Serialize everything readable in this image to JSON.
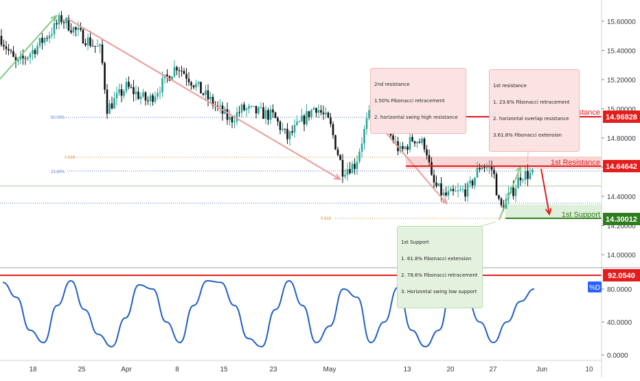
{
  "colors": {
    "up": "#26a69a",
    "down": "#111111",
    "resistance": "#e31c1c",
    "support": "#2e7d1e",
    "arrow_pink": "#eb9a9a",
    "arrow_green": "#80c980",
    "fib_orange": "#d6902c",
    "fib_blue": "#4f73c8",
    "stoch_line": "#1f5fc4",
    "stoch_level": "#e31c1c"
  },
  "price_axis": {
    "ticks": [
      "15.60000",
      "15.40000",
      "15.20000",
      "15.00000",
      "14.80000",
      "14.60000",
      "14.40000",
      "14.20000",
      "14.00000"
    ]
  },
  "stoch_axis": {
    "ticks": [
      "80.0000",
      "40.0000",
      "0.0000"
    ],
    "indicator_label": "%D"
  },
  "time_axis": {
    "labels": [
      "18",
      "25",
      "Apr",
      "8",
      "15",
      "23",
      "May",
      "13",
      "20",
      "27",
      "Jun",
      "10"
    ]
  },
  "price_tags": {
    "second_resistance": "14.96828",
    "first_resistance": "14.64642",
    "first_support": "14.30012",
    "stoch_level": "92.0540"
  },
  "level_labels": {
    "second_resistance": "2nd Resistance",
    "first_resistance": "1st Resistance",
    "first_support": "1st Support"
  },
  "fib_labels": {
    "fib_50": "50.00%",
    "fib_618_top": "0.618",
    "fib_236": "23.60%",
    "fib_618_bottom": "0.618"
  },
  "notes": {
    "second_resistance": {
      "title": "2nd resistance",
      "lines": [
        "1.50% Fibonacci retracement",
        "2. horizontal swing high resistance"
      ]
    },
    "first_resistance": {
      "title": "1st resistance",
      "lines": [
        "1. 23.6% Fibonacci retracement",
        "2. horizontal overlap resistance",
        "3.61.8% Fibonacci extension"
      ]
    },
    "first_support": {
      "title": "1st Support",
      "lines": [
        "1. 61.8% Fibonacci extension",
        "2. 78.6% Fibonacci retracement",
        "3. Horizontal swing low support"
      ]
    }
  },
  "chart_data": [
    {
      "type": "candlestick",
      "panel": "price",
      "y_range": [
        13.97,
        15.68
      ],
      "x_dates": [
        "Mar 18",
        "Mar 25",
        "Apr 1",
        "Apr 8",
        "Apr 15",
        "Apr 23",
        "May 1",
        "May 13",
        "May 20",
        "May 27",
        "Jun 3",
        "Jun 10"
      ],
      "close_path_approx": [
        {
          "x": "Mar 14",
          "y": 15.5
        },
        {
          "x": "Mar 16",
          "y": 15.3
        },
        {
          "x": "Mar 18",
          "y": 15.4
        },
        {
          "x": "Mar 21",
          "y": 15.55
        },
        {
          "x": "Mar 22",
          "y": 15.62
        },
        {
          "x": "Mar 25",
          "y": 15.5
        },
        {
          "x": "Mar 28",
          "y": 15.4
        },
        {
          "x": "Mar 29",
          "y": 15.0
        },
        {
          "x": "Apr 1",
          "y": 15.15
        },
        {
          "x": "Apr 4",
          "y": 15.05
        },
        {
          "x": "Apr 8",
          "y": 15.3
        },
        {
          "x": "Apr 12",
          "y": 15.1
        },
        {
          "x": "Apr 16",
          "y": 14.92
        },
        {
          "x": "Apr 18",
          "y": 15.0
        },
        {
          "x": "Apr 23",
          "y": 14.95
        },
        {
          "x": "Apr 25",
          "y": 14.8
        },
        {
          "x": "Apr 29",
          "y": 15.02
        },
        {
          "x": "May 1",
          "y": 14.9
        },
        {
          "x": "May 3",
          "y": 14.58
        },
        {
          "x": "May 5",
          "y": 14.62
        },
        {
          "x": "May 7",
          "y": 14.95
        },
        {
          "x": "May 9",
          "y": 14.92
        },
        {
          "x": "May 12",
          "y": 14.7
        },
        {
          "x": "May 14",
          "y": 14.8
        },
        {
          "x": "May 16",
          "y": 14.75
        },
        {
          "x": "May 17",
          "y": 14.5
        },
        {
          "x": "May 19",
          "y": 14.4
        },
        {
          "x": "May 21",
          "y": 14.42
        },
        {
          "x": "May 23",
          "y": 14.45
        },
        {
          "x": "May 25",
          "y": 14.62
        },
        {
          "x": "May 27",
          "y": 14.58
        },
        {
          "x": "May 28",
          "y": 14.31
        },
        {
          "x": "May 30",
          "y": 14.45
        },
        {
          "x": "May 31",
          "y": 14.55
        }
      ],
      "levels": [
        {
          "name": "2nd Resistance",
          "value": 14.96828
        },
        {
          "name": "1st Resistance",
          "value": 14.64642
        },
        {
          "name": "1st Support",
          "value": 14.30012
        }
      ]
    },
    {
      "type": "line",
      "panel": "oscillator",
      "series": [
        {
          "name": "%D",
          "values": [
            88,
            70,
            30,
            15,
            60,
            90,
            55,
            25,
            10,
            45,
            85,
            80,
            40,
            15,
            60,
            90,
            88,
            60,
            20,
            10,
            55,
            90,
            60,
            15,
            35,
            80,
            70,
            15,
            40,
            82,
            30,
            10,
            30,
            88,
            70,
            40,
            15,
            40,
            65,
            80
          ]
        }
      ],
      "ylim": [
        0,
        100
      ],
      "level": 92.054
    }
  ]
}
